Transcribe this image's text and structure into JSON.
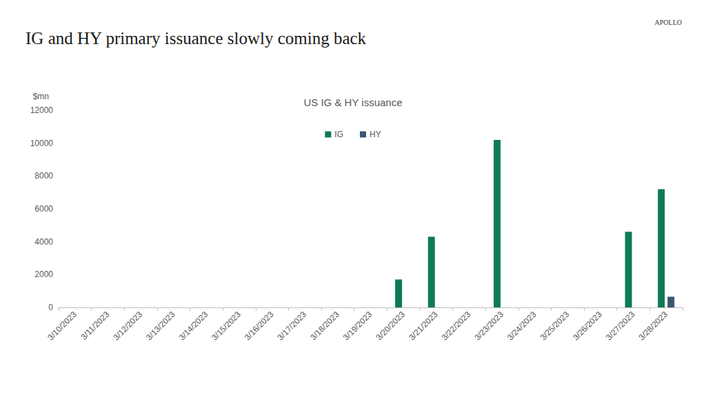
{
  "chart_data": {
    "type": "bar",
    "title": "IG and HY primary issuance slowly coming back",
    "subtitle": "US IG & HY issuance",
    "y_label": "$mn",
    "annotations": [
      "APOLLO"
    ],
    "categories": [
      "3/10/2023",
      "3/11/2023",
      "3/12/2023",
      "3/13/2023",
      "3/14/2023",
      "3/15/2023",
      "3/16/2023",
      "3/17/2023",
      "3/18/2023",
      "3/19/2023",
      "3/20/2023",
      "3/21/2023",
      "3/22/2023",
      "3/23/2023",
      "3/24/2023",
      "3/25/2023",
      "3/26/2023",
      "3/27/2023",
      "3/28/2023"
    ],
    "series": [
      {
        "name": "IG",
        "color": "#0e7a5a",
        "values": [
          0,
          0,
          0,
          0,
          0,
          0,
          0,
          0,
          0,
          0,
          1700,
          4300,
          0,
          10200,
          0,
          0,
          0,
          4600,
          7200
        ]
      },
      {
        "name": "HY",
        "color": "#3b5672",
        "values": [
          0,
          0,
          0,
          0,
          0,
          0,
          0,
          0,
          0,
          0,
          0,
          0,
          0,
          0,
          0,
          0,
          0,
          0,
          650
        ]
      }
    ],
    "ylim": [
      0,
      12000
    ],
    "yticks": [
      0,
      2000,
      4000,
      6000,
      8000,
      10000,
      12000
    ],
    "grid": false,
    "legend": "top"
  }
}
